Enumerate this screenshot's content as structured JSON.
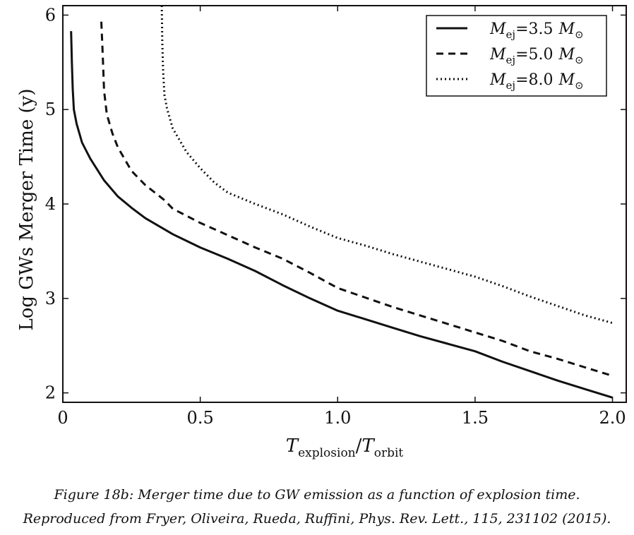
{
  "caption": {
    "line1": "Figure 18b: Merger time due to GW emission as a function of explosion time.",
    "line2": "Reproduced from Fryer, Oliveira, Rueda, Ruffini, Phys. Rev. Lett., 115, 231102 (2015)."
  },
  "chart_data": {
    "type": "line",
    "xlabel": {
      "main": "T",
      "sub1": "explosion",
      "slash": "/",
      "main2": "T",
      "sub2": "orbit"
    },
    "ylabel": "Log GWs Merger Time (y)",
    "xlim": [
      0,
      2.05
    ],
    "ylim": [
      1.9,
      6.1
    ],
    "xticks": [
      0,
      0.5,
      1.0,
      1.5,
      2.0
    ],
    "xtick_labels": [
      "0",
      "0.5",
      "1.0",
      "1.5",
      "2.0"
    ],
    "yticks": [
      2,
      3,
      4,
      5,
      6
    ],
    "ytick_labels": [
      "2",
      "3",
      "4",
      "5",
      "6"
    ],
    "grid": false,
    "legend_position": "top-right",
    "series": [
      {
        "name": "M_ej = 3.5 M_sun",
        "legend": {
          "m": "M",
          "sub": "ej",
          "eq": "=3.5",
          "ms": "M",
          "sun": "⊙"
        },
        "style": "solid",
        "x": [
          0.03,
          0.033,
          0.036,
          0.04,
          0.05,
          0.07,
          0.1,
          0.15,
          0.2,
          0.25,
          0.3,
          0.4,
          0.5,
          0.6,
          0.7,
          0.8,
          0.9,
          1.0,
          1.1,
          1.2,
          1.3,
          1.4,
          1.5,
          1.6,
          1.7,
          1.8,
          1.9,
          2.0
        ],
        "y": [
          5.83,
          5.5,
          5.22,
          5.0,
          4.85,
          4.65,
          4.48,
          4.25,
          4.08,
          3.96,
          3.85,
          3.68,
          3.54,
          3.42,
          3.29,
          3.14,
          3.0,
          2.87,
          2.78,
          2.69,
          2.6,
          2.52,
          2.44,
          2.33,
          2.23,
          2.13,
          2.04,
          1.95
        ]
      },
      {
        "name": "M_ej = 5.0 M_sun",
        "legend": {
          "m": "M",
          "sub": "ej",
          "eq": "=5.0",
          "ms": "M",
          "sun": "⊙"
        },
        "style": "dashed",
        "x": [
          0.14,
          0.145,
          0.15,
          0.16,
          0.18,
          0.2,
          0.25,
          0.3,
          0.37,
          0.4,
          0.5,
          0.6,
          0.7,
          0.8,
          0.9,
          1.0,
          1.1,
          1.2,
          1.3,
          1.4,
          1.5,
          1.6,
          1.7,
          1.8,
          1.9,
          2.0
        ],
        "y": [
          5.93,
          5.6,
          5.2,
          4.95,
          4.75,
          4.6,
          4.35,
          4.2,
          4.04,
          3.95,
          3.8,
          3.67,
          3.54,
          3.42,
          3.27,
          3.11,
          3.01,
          2.91,
          2.82,
          2.73,
          2.64,
          2.55,
          2.44,
          2.36,
          2.27,
          2.18
        ]
      },
      {
        "name": "M_ej = 8.0 M_sun",
        "legend": {
          "m": "M",
          "sub": "ej",
          "eq": "=8.0",
          "ms": "M",
          "sun": "⊙"
        },
        "style": "dotted",
        "x": [
          0.36,
          0.362,
          0.365,
          0.37,
          0.38,
          0.4,
          0.45,
          0.5,
          0.55,
          0.6,
          0.7,
          0.8,
          0.9,
          1.0,
          1.1,
          1.2,
          1.3,
          1.4,
          1.5,
          1.6,
          1.7,
          1.8,
          1.9,
          2.0
        ],
        "y": [
          6.1,
          5.7,
          5.4,
          5.15,
          5.0,
          4.8,
          4.55,
          4.38,
          4.23,
          4.12,
          4.0,
          3.89,
          3.76,
          3.64,
          3.56,
          3.47,
          3.39,
          3.31,
          3.23,
          3.13,
          3.02,
          2.92,
          2.82,
          2.74
        ]
      }
    ]
  }
}
